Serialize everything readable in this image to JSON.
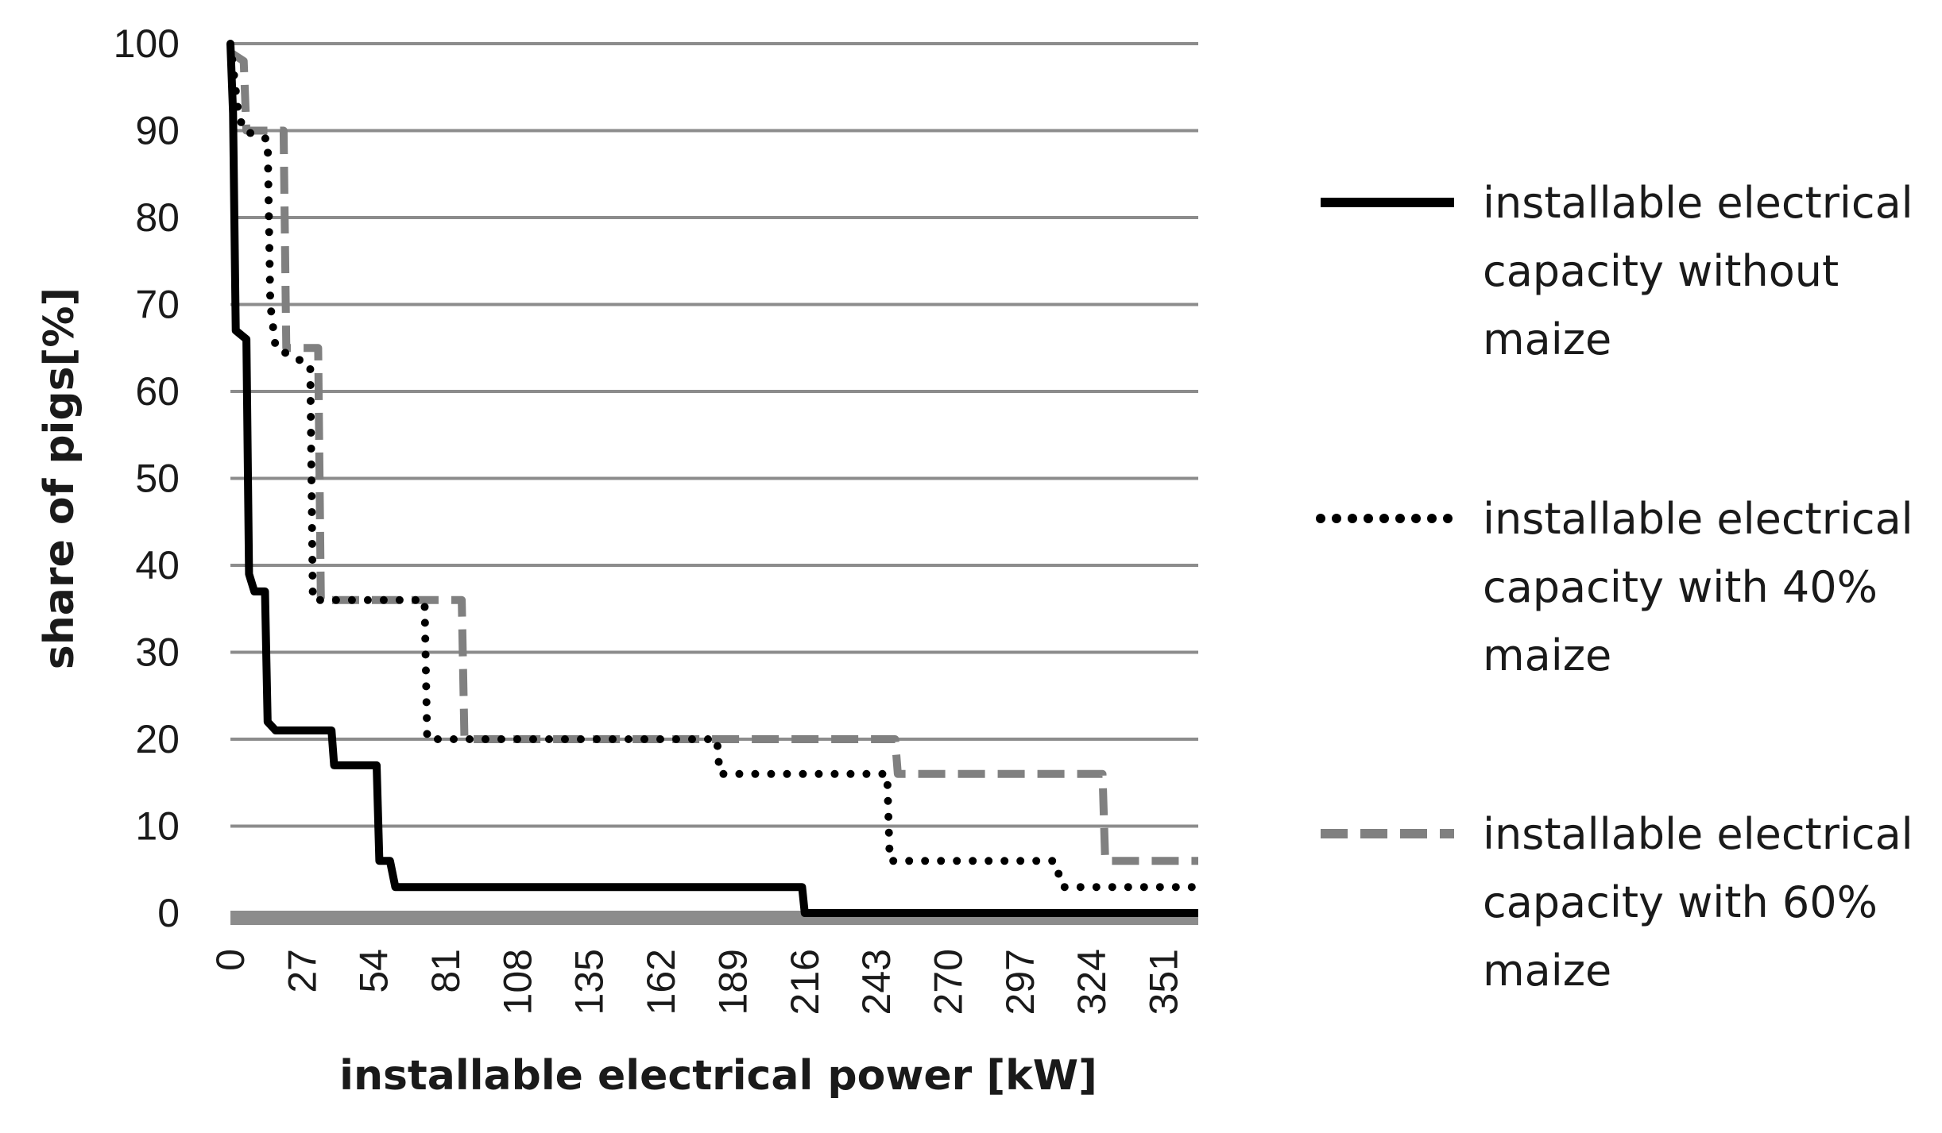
{
  "chart_data": {
    "type": "line",
    "xlabel": "installable electrical power [kW]",
    "ylabel": "share of pigs[%]",
    "xlim": [
      0,
      364
    ],
    "ylim": [
      0,
      100
    ],
    "x_ticks": [
      0,
      27,
      54,
      81,
      108,
      135,
      162,
      189,
      216,
      243,
      270,
      297,
      324,
      351
    ],
    "y_ticks": [
      0,
      10,
      20,
      30,
      40,
      50,
      60,
      70,
      80,
      90,
      100
    ],
    "grid": "horizontal",
    "legend_position": "right",
    "series": [
      {
        "name": "installable electrical capacity without maize",
        "color": "#000000",
        "style": "solid",
        "points": [
          [
            0,
            100
          ],
          [
            1,
            92
          ],
          [
            2,
            67
          ],
          [
            6,
            66
          ],
          [
            7,
            39
          ],
          [
            9,
            37
          ],
          [
            13,
            37
          ],
          [
            14,
            22
          ],
          [
            17,
            21
          ],
          [
            38,
            21
          ],
          [
            39,
            17
          ],
          [
            55,
            17
          ],
          [
            56,
            6
          ],
          [
            60,
            6
          ],
          [
            62,
            3
          ],
          [
            215,
            3
          ],
          [
            216,
            0
          ],
          [
            364,
            0
          ]
        ]
      },
      {
        "name": "installable electrical capacity with 40% maize",
        "color": "#000000",
        "style": "dotted",
        "points": [
          [
            0,
            100
          ],
          [
            3,
            92
          ],
          [
            5,
            90
          ],
          [
            14,
            89
          ],
          [
            15,
            70
          ],
          [
            17,
            65
          ],
          [
            30,
            63
          ],
          [
            31,
            36
          ],
          [
            73,
            36
          ],
          [
            74,
            20
          ],
          [
            183,
            20
          ],
          [
            184,
            16
          ],
          [
            247,
            16
          ],
          [
            248,
            6
          ],
          [
            310,
            6
          ],
          [
            313,
            3
          ],
          [
            364,
            3
          ]
        ]
      },
      {
        "name": "installable electrical capacity with 60% maize",
        "color": "#808080",
        "style": "dashed",
        "points": [
          [
            0,
            99
          ],
          [
            5,
            98
          ],
          [
            6,
            90
          ],
          [
            20,
            90
          ],
          [
            21,
            65
          ],
          [
            33,
            65
          ],
          [
            34,
            36
          ],
          [
            87,
            36
          ],
          [
            88,
            20
          ],
          [
            250,
            20
          ],
          [
            251,
            16
          ],
          [
            328,
            16
          ],
          [
            329,
            6
          ],
          [
            364,
            6
          ]
        ]
      }
    ]
  }
}
